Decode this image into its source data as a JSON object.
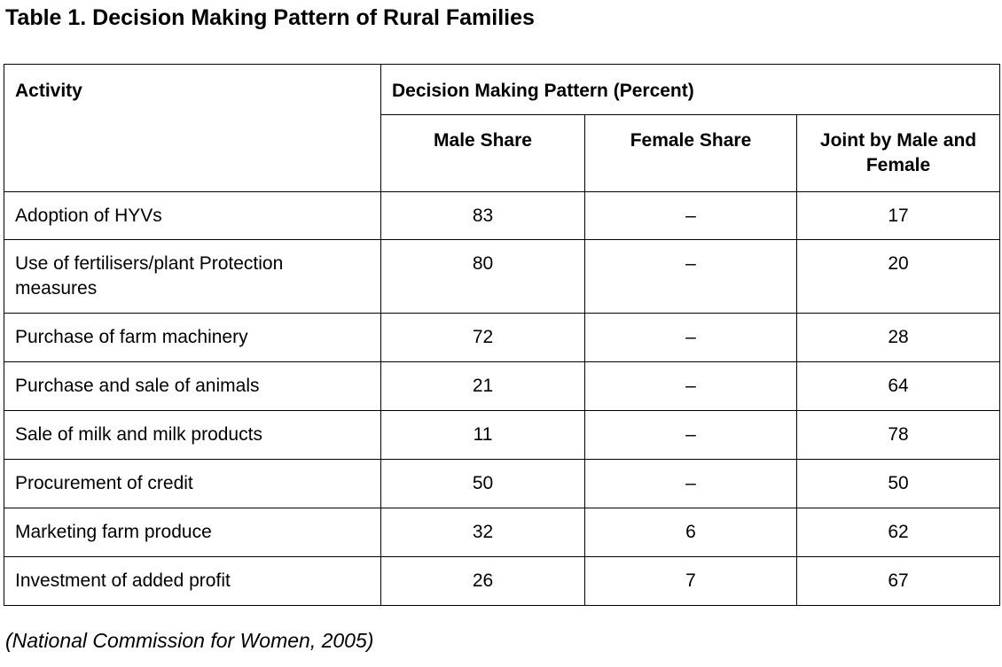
{
  "title": "Table 1. Decision Making Pattern of Rural Families",
  "table": {
    "header": {
      "activity": "Activity",
      "group": "Decision Making Pattern (Percent)",
      "male": "Male Share",
      "female": "Female Share",
      "joint": "Joint by Male and Female"
    },
    "rows": [
      {
        "activity": "Adoption of HYVs",
        "male": "83",
        "female": "–",
        "joint": "17"
      },
      {
        "activity": "Use of fertilisers/plant Protection measures",
        "male": "80",
        "female": "–",
        "joint": "20"
      },
      {
        "activity": "Purchase of farm machinery",
        "male": "72",
        "female": "–",
        "joint": "28"
      },
      {
        "activity": "Purchase and sale of animals",
        "male": "21",
        "female": "–",
        "joint": "64"
      },
      {
        "activity": "Sale of milk and milk products",
        "male": "11",
        "female": "–",
        "joint": "78"
      },
      {
        "activity": "Procurement of credit",
        "male": "50",
        "female": "–",
        "joint": "50"
      },
      {
        "activity": "Marketing farm produce",
        "male": "32",
        "female": "6",
        "joint": "62"
      },
      {
        "activity": "Investment of added profit",
        "male": "26",
        "female": "7",
        "joint": "67"
      }
    ]
  },
  "source": "(National Commission for Women, 2005)"
}
